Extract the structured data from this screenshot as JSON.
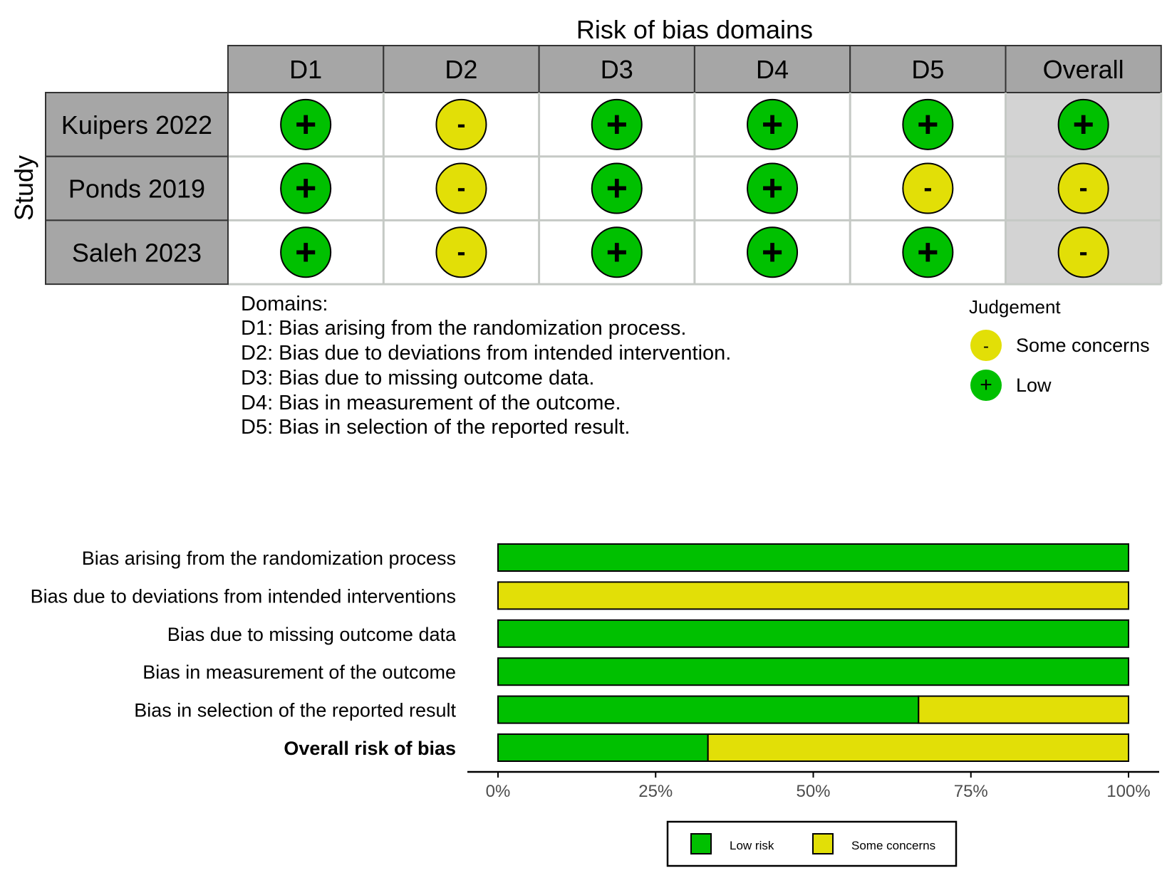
{
  "colors": {
    "low": "#00C000",
    "some_concerns": "#E2DF07",
    "header_bg": "#A6A6A6",
    "overall_bg": "#D3D3D3",
    "grid_line": "#C5C9C5",
    "border": "#333333"
  },
  "chart_data": [
    {
      "type": "table",
      "title": "Risk of bias domains",
      "row_axis_label": "Study",
      "columns": [
        "D1",
        "D2",
        "D3",
        "D4",
        "D5",
        "Overall"
      ],
      "rows": [
        {
          "study": "Kuipers 2022",
          "judgements": [
            "Low",
            "Some concerns",
            "Low",
            "Low",
            "Low",
            "Low"
          ]
        },
        {
          "study": "Ponds 2019",
          "judgements": [
            "Low",
            "Some concerns",
            "Low",
            "Low",
            "Some concerns",
            "Some concerns"
          ]
        },
        {
          "study": "Saleh 2023",
          "judgements": [
            "Low",
            "Some concerns",
            "Low",
            "Low",
            "Low",
            "Some concerns"
          ]
        }
      ],
      "symbols": {
        "Low": "+",
        "Some concerns": "-"
      },
      "domain_notes": {
        "heading": "Domains:",
        "lines": [
          "D1: Bias arising from the randomization process.",
          "D2: Bias due to deviations from intended intervention.",
          "D3: Bias due to missing outcome data.",
          "D4: Bias in measurement of the outcome.",
          "D5: Bias in selection of the reported result."
        ]
      },
      "legend": {
        "title": "Judgement",
        "entries": [
          {
            "label": "Some concerns",
            "symbol": "-",
            "key": "some_concerns"
          },
          {
            "label": "Low",
            "symbol": "+",
            "key": "low"
          }
        ]
      }
    },
    {
      "type": "bar",
      "stacked": true,
      "orientation": "horizontal",
      "categories": [
        "Bias arising from the randomization process",
        "Bias due to deviations from intended interventions",
        "Bias due to missing outcome data",
        "Bias in measurement of the outcome",
        "Bias in selection of the reported result",
        "Overall risk of bias"
      ],
      "bold_category": "Overall risk of bias",
      "series": [
        {
          "name": "Low risk",
          "key": "low",
          "values": [
            100,
            0,
            100,
            100,
            66.7,
            33.3
          ]
        },
        {
          "name": "Some concerns",
          "key": "some_concerns",
          "values": [
            0,
            100,
            0,
            0,
            33.3,
            66.7
          ]
        }
      ],
      "xlim": [
        0,
        100
      ],
      "x_ticks": [
        "0%",
        "25%",
        "50%",
        "75%",
        "100%"
      ],
      "legend_placement": "bottom",
      "xlabel": "",
      "ylabel": ""
    }
  ]
}
